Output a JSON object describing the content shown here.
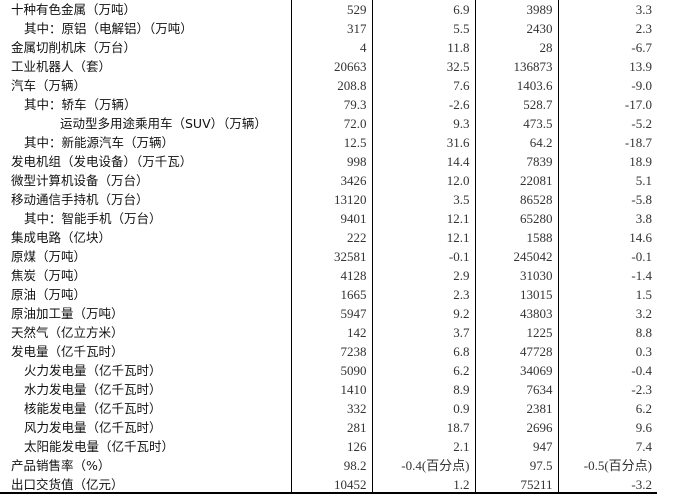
{
  "rows": [
    {
      "label": "十种有色金属（万吨）",
      "indent": 0,
      "v1": "529",
      "v2": "6.9",
      "v3": "3989",
      "v4": "3.3"
    },
    {
      "label": "其中：原铝（电解铝）（万吨）",
      "indent": 1,
      "v1": "317",
      "v2": "5.5",
      "v3": "2430",
      "v4": "2.3"
    },
    {
      "label": "金属切削机床（万台）",
      "indent": 0,
      "v1": "4",
      "v2": "11.8",
      "v3": "28",
      "v4": "-6.7"
    },
    {
      "label": "工业机器人（套）",
      "indent": 0,
      "v1": "20663",
      "v2": "32.5",
      "v3": "136873",
      "v4": "13.9"
    },
    {
      "label": "汽车（万辆）",
      "indent": 0,
      "v1": "208.8",
      "v2": "7.6",
      "v3": "1403.6",
      "v4": "-9.0"
    },
    {
      "label": "其中：轿车（万辆）",
      "indent": 1,
      "v1": "79.3",
      "v2": "-2.6",
      "v3": "528.7",
      "v4": "-17.0"
    },
    {
      "label": "运动型多用途乘用车（SUV）（万辆）",
      "indent": 2,
      "v1": "72.0",
      "v2": "9.3",
      "v3": "473.5",
      "v4": "-5.2"
    },
    {
      "label": "其中：新能源汽车（万辆）",
      "indent": 1,
      "v1": "12.5",
      "v2": "31.6",
      "v3": "64.2",
      "v4": "-18.7"
    },
    {
      "label": "发电机组（发电设备）（万千瓦）",
      "indent": 0,
      "v1": "998",
      "v2": "14.4",
      "v3": "7839",
      "v4": "18.9"
    },
    {
      "label": "微型计算机设备（万台）",
      "indent": 0,
      "v1": "3426",
      "v2": "12.0",
      "v3": "22081",
      "v4": "5.1"
    },
    {
      "label": "移动通信手持机（万台）",
      "indent": 0,
      "v1": "13120",
      "v2": "3.5",
      "v3": "86528",
      "v4": "-5.8"
    },
    {
      "label": "其中：智能手机（万台）",
      "indent": 1,
      "v1": "9401",
      "v2": "12.1",
      "v3": "65280",
      "v4": "3.8"
    },
    {
      "label": "集成电路（亿块）",
      "indent": 0,
      "v1": "222",
      "v2": "12.1",
      "v3": "1588",
      "v4": "14.6"
    },
    {
      "label": "原煤（万吨）",
      "indent": 0,
      "v1": "32581",
      "v2": "-0.1",
      "v3": "245042",
      "v4": "-0.1"
    },
    {
      "label": "焦炭（万吨）",
      "indent": 0,
      "v1": "4128",
      "v2": "2.9",
      "v3": "31030",
      "v4": "-1.4"
    },
    {
      "label": "原油（万吨）",
      "indent": 0,
      "v1": "1665",
      "v2": "2.3",
      "v3": "13015",
      "v4": "1.5"
    },
    {
      "label": "原油加工量（万吨）",
      "indent": 0,
      "v1": "5947",
      "v2": "9.2",
      "v3": "43803",
      "v4": "3.2"
    },
    {
      "label": "天然气（亿立方米）",
      "indent": 0,
      "v1": "142",
      "v2": "3.7",
      "v3": "1225",
      "v4": "8.8"
    },
    {
      "label": "发电量（亿千瓦时）",
      "indent": 0,
      "v1": "7238",
      "v2": "6.8",
      "v3": "47728",
      "v4": "0.3"
    },
    {
      "label": "火力发电量（亿千瓦时）",
      "indent": 1,
      "v1": "5090",
      "v2": "6.2",
      "v3": "34069",
      "v4": "-0.4"
    },
    {
      "label": "水力发电量（亿千瓦时）",
      "indent": 1,
      "v1": "1410",
      "v2": "8.9",
      "v3": "7634",
      "v4": "-2.3"
    },
    {
      "label": "核能发电量（亿千瓦时）",
      "indent": 1,
      "v1": "332",
      "v2": "0.9",
      "v3": "2381",
      "v4": "6.2"
    },
    {
      "label": "风力发电量（亿千瓦时）",
      "indent": 1,
      "v1": "281",
      "v2": "18.7",
      "v3": "2696",
      "v4": "9.6"
    },
    {
      "label": "太阳能发电量（亿千瓦时）",
      "indent": 1,
      "v1": "126",
      "v2": "2.1",
      "v3": "947",
      "v4": "7.4"
    },
    {
      "label": "产品销售率（%）",
      "indent": 0,
      "v1": "98.2",
      "v2": "-0.4(百分点)",
      "v3": "97.5",
      "v4": "-0.5(百分点)"
    },
    {
      "label": "出口交货值（亿元）",
      "indent": 0,
      "v1": "10452",
      "v2": "1.2",
      "v3": "75211",
      "v4": "-3.2"
    }
  ]
}
